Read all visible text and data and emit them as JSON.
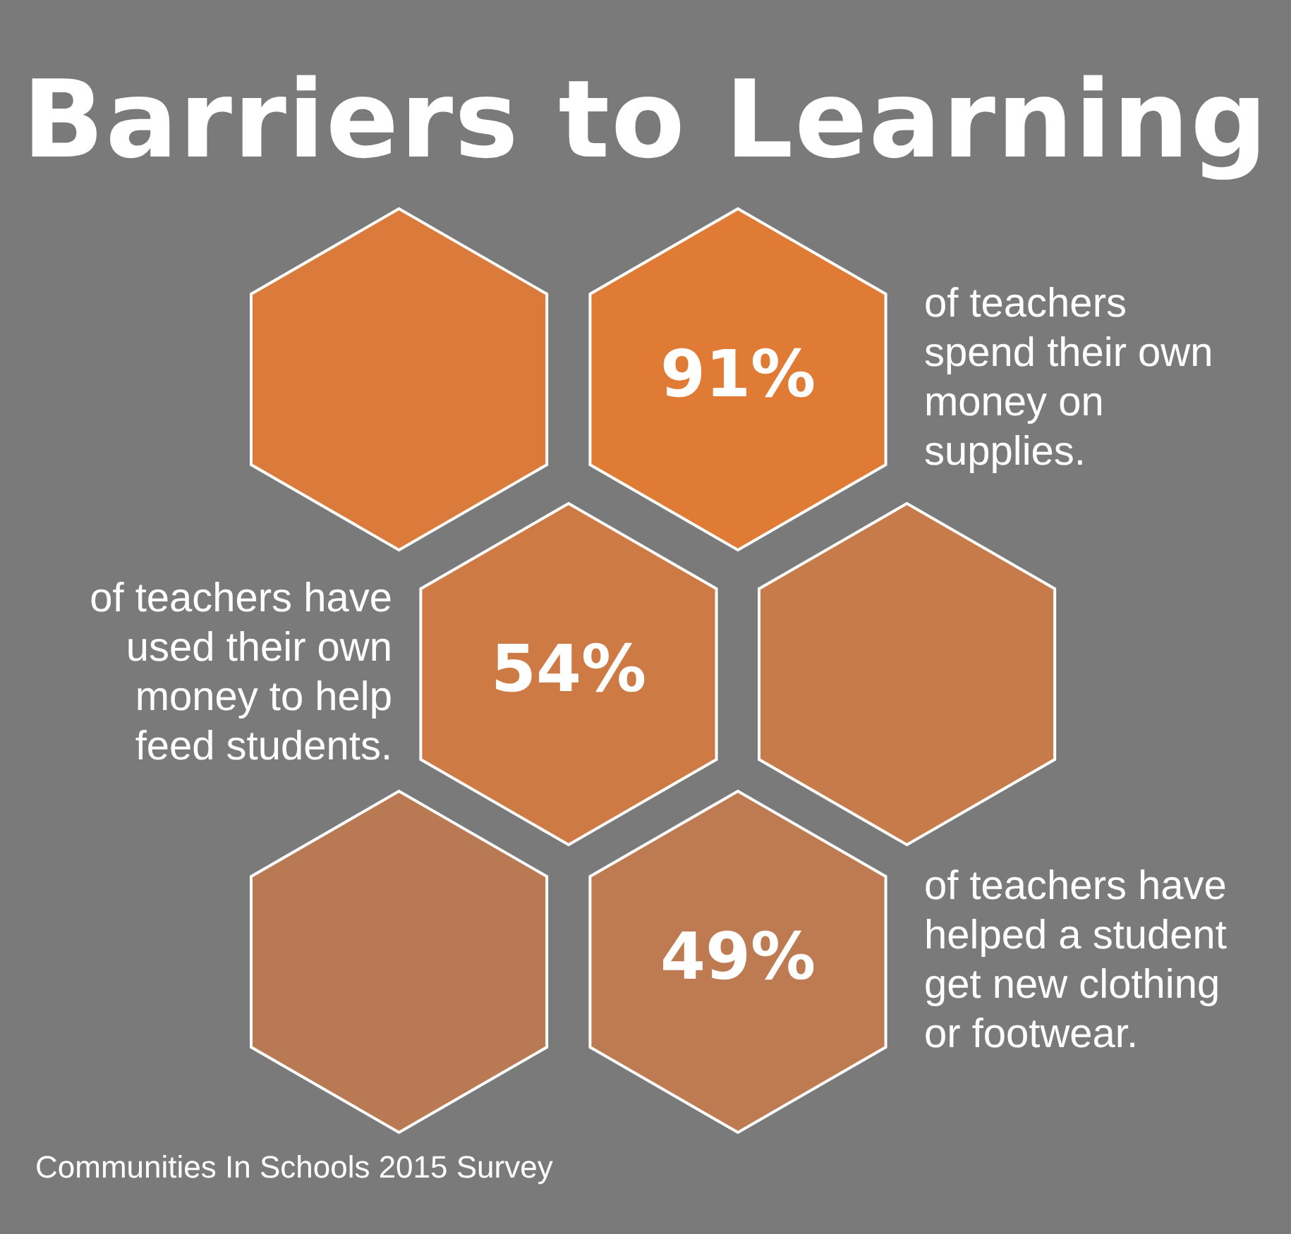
{
  "chart_data": {
    "type": "other",
    "title": "Barriers to Learning",
    "categories": [
      "of teachers spend their own money on supplies.",
      "of teachers have used their own money to help feed students.",
      "of teachers have helped a student get new clothing or footwear."
    ],
    "values": [
      91,
      54,
      49
    ],
    "value_labels": [
      "91%",
      "54%",
      "49%"
    ],
    "colors": [
      "#e07b35",
      "#cd7a45",
      "#be7a50"
    ],
    "annotations": [
      "Communities In Schools 2015 Survey"
    ]
  }
}
